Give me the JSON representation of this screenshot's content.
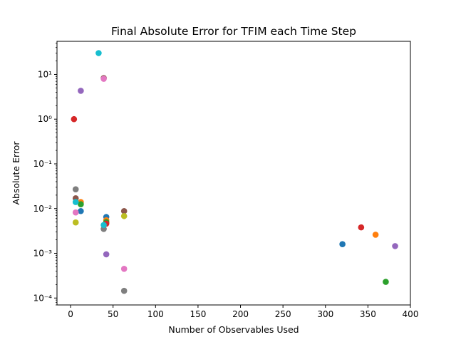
{
  "chart_data": {
    "type": "scatter",
    "title": "Final Absolute Error for TFIM each Time Step",
    "xlabel": "Number of Observables Used",
    "ylabel": "Absolute Error",
    "xlim": [
      -16,
      400
    ],
    "ylim": [
      7e-05,
      55
    ],
    "yscale": "log",
    "grid": false,
    "xticks": [
      0,
      50,
      100,
      150,
      200,
      250,
      300,
      350,
      400
    ],
    "xtick_labels": [
      "0",
      "50",
      "100",
      "150",
      "200",
      "250",
      "300",
      "350",
      "400"
    ],
    "yticks": [
      0.0001,
      0.001,
      0.01,
      0.1,
      1,
      10
    ],
    "ytick_labels": [
      "10⁻⁴",
      "10⁻³",
      "10⁻²",
      "10⁻¹",
      "10⁰",
      "10¹"
    ],
    "points": [
      {
        "x": 4,
        "y": 1.0,
        "color": "#d62728"
      },
      {
        "x": 12,
        "y": 4.3,
        "color": "#9467bd"
      },
      {
        "x": 33,
        "y": 30,
        "color": "#17becf"
      },
      {
        "x": 39,
        "y": 8.3,
        "color": "#8c564b"
      },
      {
        "x": 39,
        "y": 8.0,
        "color": "#e377c2"
      },
      {
        "x": 6,
        "y": 0.027,
        "color": "#7f7f7f"
      },
      {
        "x": 6,
        "y": 0.017,
        "color": "#8c564b"
      },
      {
        "x": 12,
        "y": 0.014,
        "color": "#ff7f0e"
      },
      {
        "x": 12,
        "y": 0.0125,
        "color": "#2ca02c"
      },
      {
        "x": 6,
        "y": 0.014,
        "color": "#17becf"
      },
      {
        "x": 12,
        "y": 0.0088,
        "color": "#1f77b4"
      },
      {
        "x": 6,
        "y": 0.0082,
        "color": "#e377c2"
      },
      {
        "x": 6,
        "y": 0.0049,
        "color": "#bcbd22"
      },
      {
        "x": 42,
        "y": 0.0065,
        "color": "#1f77b4"
      },
      {
        "x": 42,
        "y": 0.0055,
        "color": "#ff7f0e"
      },
      {
        "x": 42,
        "y": 0.005,
        "color": "#2ca02c"
      },
      {
        "x": 42,
        "y": 0.0046,
        "color": "#d62728"
      },
      {
        "x": 39,
        "y": 0.0035,
        "color": "#7f7f7f"
      },
      {
        "x": 39,
        "y": 0.0043,
        "color": "#17becf"
      },
      {
        "x": 42,
        "y": 0.00095,
        "color": "#9467bd"
      },
      {
        "x": 63,
        "y": 0.0088,
        "color": "#8c564b"
      },
      {
        "x": 63,
        "y": 0.0068,
        "color": "#bcbd22"
      },
      {
        "x": 63,
        "y": 0.00045,
        "color": "#e377c2"
      },
      {
        "x": 63,
        "y": 0.000145,
        "color": "#7f7f7f"
      },
      {
        "x": 320,
        "y": 0.0016,
        "color": "#1f77b4"
      },
      {
        "x": 342,
        "y": 0.0038,
        "color": "#d62728"
      },
      {
        "x": 359,
        "y": 0.0026,
        "color": "#ff7f0e"
      },
      {
        "x": 371,
        "y": 0.00023,
        "color": "#2ca02c"
      },
      {
        "x": 382,
        "y": 0.00145,
        "color": "#9467bd"
      }
    ]
  }
}
